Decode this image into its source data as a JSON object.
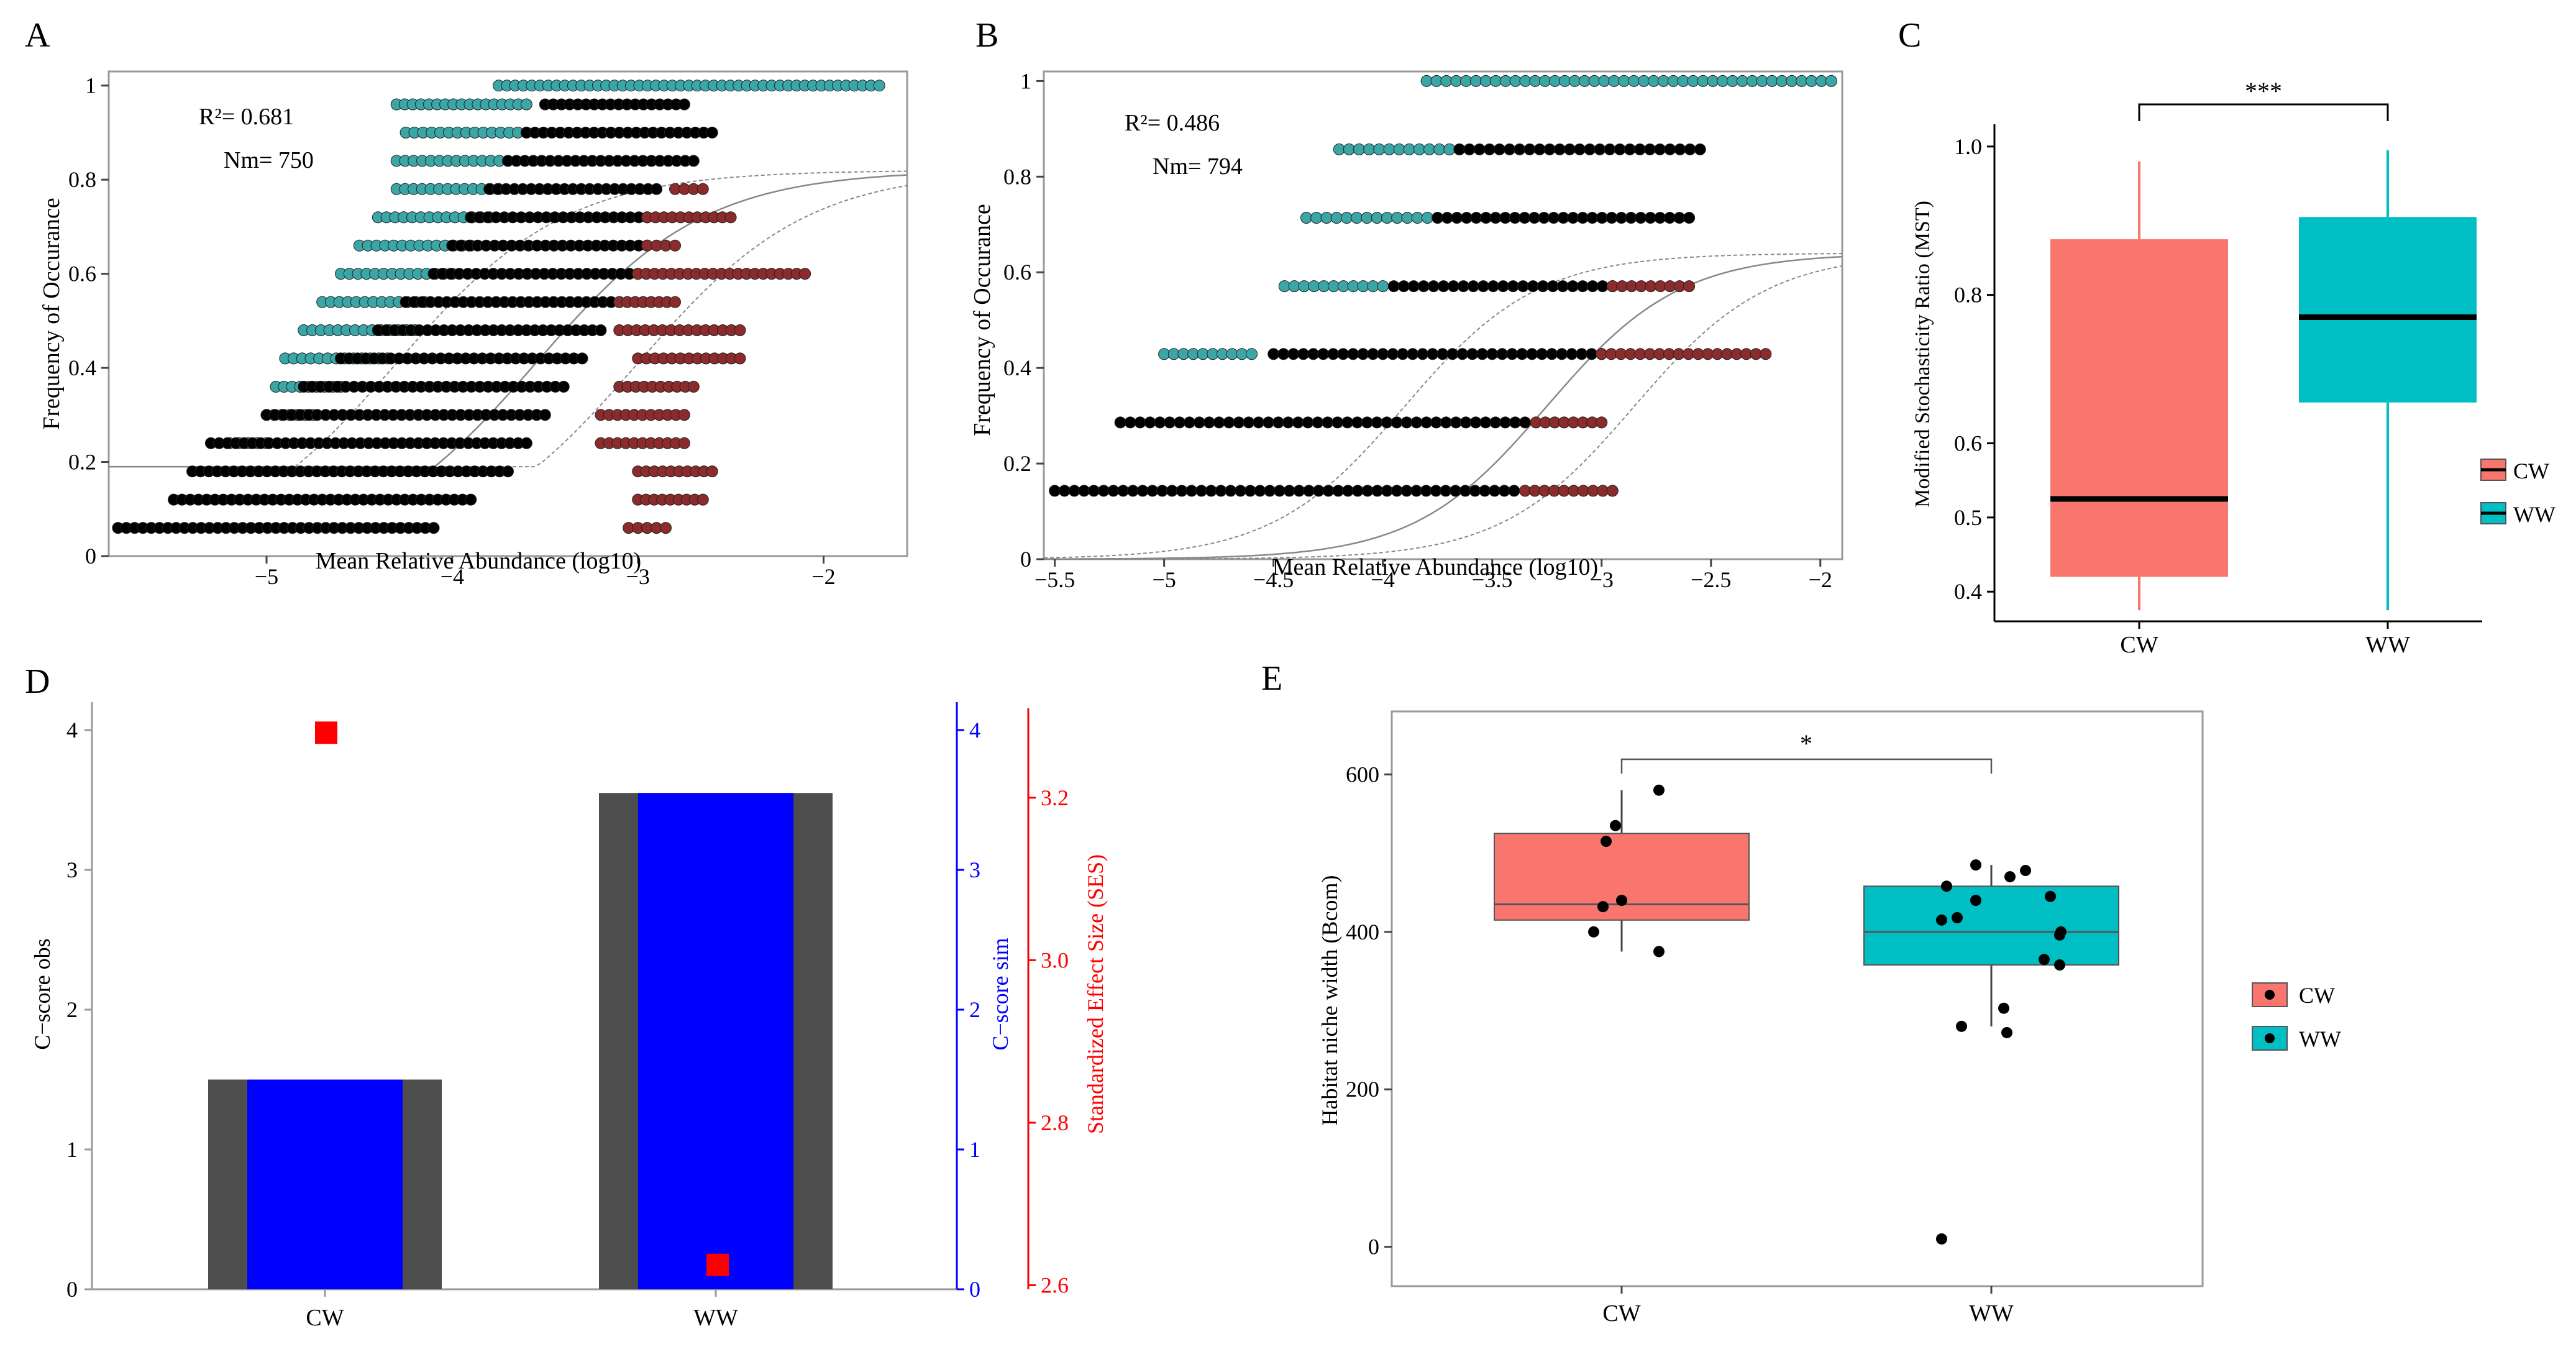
{
  "figure": {
    "panel_labels": [
      "A",
      "B",
      "C",
      "D",
      "E"
    ]
  },
  "colors": {
    "black_points": "#000000",
    "teal_points": "#3aa6a6",
    "red_points": "#8b2b2b",
    "cw_box": "#f8766d",
    "ww_box": "#00bfc4",
    "bar_outer": "#4d4d4d",
    "bar_inner": "#0000ff",
    "ses": "#ff0000",
    "sim_axis": "#0000ff",
    "ses_axis": "#ff0000"
  },
  "chart_data": [
    {
      "id": "A",
      "type": "scatter",
      "title": "",
      "xlabel": "Mean Relative Abundance (log10)",
      "ylabel": "Frequency of Occurance",
      "xlim": [
        -5.85,
        -1.55
      ],
      "ylim": [
        0,
        1.03
      ],
      "xticks": [
        -5,
        -4,
        -3,
        -2
      ],
      "yticks": [
        0,
        0.2,
        0.4,
        0.6,
        0.8,
        1
      ],
      "xtick_labels": [
        "−5",
        "−4",
        "−3",
        "−2"
      ],
      "ytick_labels": [
        "0",
        "0.2",
        "0.4",
        "0.6",
        "0.8",
        "1"
      ],
      "annotations": {
        "r2": "R²= 0.681",
        "nm": "Nm= 750"
      },
      "neutral_fit": {
        "m": 0.82,
        "x0": -3.55,
        "k": 2.2,
        "upper_offset": 0.55,
        "lower_offset": -0.75,
        "min": 0.19
      },
      "rows": [
        {
          "y": 0.06,
          "black": [
            -5.8,
            -4.1
          ],
          "red": [
            -3.05,
            -2.85
          ],
          "teal": null
        },
        {
          "y": 0.12,
          "black": [
            -5.5,
            -3.9
          ],
          "red": [
            -3.0,
            -2.65
          ],
          "teal": null
        },
        {
          "y": 0.18,
          "black": [
            -5.4,
            -3.7
          ],
          "red": [
            -3.0,
            -2.6
          ],
          "teal": null
        },
        {
          "y": 0.24,
          "black": [
            -5.3,
            -3.6
          ],
          "red": [
            -3.2,
            -2.75
          ],
          "teal": [
            -5.2,
            -5.0
          ]
        },
        {
          "y": 0.3,
          "black": [
            -5.0,
            -3.5
          ],
          "red": [
            -3.2,
            -2.75
          ],
          "teal": [
            -5.0,
            -4.75
          ]
        },
        {
          "y": 0.36,
          "black": [
            -4.8,
            -3.4
          ],
          "red": [
            -3.1,
            -2.7
          ],
          "teal": [
            -4.95,
            -4.6
          ]
        },
        {
          "y": 0.42,
          "black": [
            -4.6,
            -3.3
          ],
          "red": [
            -3.0,
            -2.45
          ],
          "teal": [
            -4.9,
            -4.35
          ]
        },
        {
          "y": 0.48,
          "black": [
            -4.4,
            -3.2
          ],
          "red": [
            -3.1,
            -2.45
          ],
          "teal": [
            -4.8,
            -4.2
          ]
        },
        {
          "y": 0.54,
          "black": [
            -4.25,
            -3.1
          ],
          "red": [
            -3.1,
            -2.8
          ],
          "teal": [
            -4.7,
            -4.15
          ]
        },
        {
          "y": 0.6,
          "black": [
            -4.1,
            -3.0
          ],
          "red": [
            -3.0,
            -2.1
          ],
          "teal": [
            -4.6,
            -4.0
          ]
        },
        {
          "y": 0.66,
          "black": [
            -4.0,
            -2.95
          ],
          "red": [
            -2.95,
            -2.8
          ],
          "teal": [
            -4.5,
            -3.9
          ]
        },
        {
          "y": 0.72,
          "black": [
            -3.9,
            -2.95
          ],
          "red": [
            -2.95,
            -2.5
          ],
          "teal": [
            -4.4,
            -3.8
          ]
        },
        {
          "y": 0.78,
          "black": [
            -3.8,
            -2.9
          ],
          "red": [
            -2.8,
            -2.65
          ],
          "teal": [
            -4.3,
            -3.75
          ]
        },
        {
          "y": 0.84,
          "black": [
            -3.7,
            -2.7
          ],
          "red": null,
          "teal": [
            -4.3,
            -3.7
          ]
        },
        {
          "y": 0.9,
          "black": [
            -3.6,
            -2.6
          ],
          "red": null,
          "teal": [
            -4.25,
            -3.6
          ]
        },
        {
          "y": 0.96,
          "black": [
            -3.5,
            -2.75
          ],
          "red": null,
          "teal": [
            -4.3,
            -3.6
          ]
        },
        {
          "y": 1.0,
          "black": null,
          "red": null,
          "teal": [
            -3.75,
            -1.7
          ]
        }
      ]
    },
    {
      "id": "B",
      "type": "scatter",
      "title": "",
      "xlabel": "Mean Relative Abundance (log10)",
      "ylabel": "Frequency of Occurance",
      "xlim": [
        -5.55,
        -1.9
      ],
      "ylim": [
        0,
        1.02
      ],
      "xticks": [
        -5.5,
        -5,
        -4.5,
        -4,
        -3.5,
        -3,
        -2.5,
        -2
      ],
      "yticks": [
        0,
        0.2,
        0.4,
        0.6,
        0.8,
        1
      ],
      "xtick_labels": [
        "−5.5",
        "−5",
        "−4.5",
        "−4",
        "−3.5",
        "−3",
        "−2.5",
        "−2"
      ],
      "ytick_labels": [
        "0",
        "0.2",
        "0.4",
        "0.6",
        "0.8",
        "1"
      ],
      "annotations": {
        "r2": "R²= 0.486",
        "nm": "Nm= 794"
      },
      "neutral_fit": {
        "m": 0.64,
        "x0": -3.25,
        "k": 3.3,
        "upper_offset": 0.4,
        "lower_offset": -0.65,
        "min": 0.0
      },
      "rows": [
        {
          "y": 0.143,
          "black": [
            -5.5,
            -3.4
          ],
          "red": [
            -3.35,
            -2.95
          ],
          "teal": null
        },
        {
          "y": 0.286,
          "black": [
            -5.2,
            -3.35
          ],
          "red": [
            -3.3,
            -3.0
          ],
          "teal": null
        },
        {
          "y": 0.429,
          "black": [
            -4.5,
            -3.0
          ],
          "red": [
            -3.0,
            -2.25
          ],
          "teal": [
            -5.0,
            -4.6
          ]
        },
        {
          "y": 0.571,
          "black": [
            -3.95,
            -2.95
          ],
          "red": [
            -2.95,
            -2.6
          ],
          "teal": [
            -4.45,
            -4.0
          ]
        },
        {
          "y": 0.714,
          "black": [
            -3.75,
            -2.6
          ],
          "red": null,
          "teal": [
            -4.35,
            -3.75
          ]
        },
        {
          "y": 0.857,
          "black": [
            -3.65,
            -2.55
          ],
          "red": null,
          "teal": [
            -4.2,
            -3.65
          ]
        },
        {
          "y": 1.0,
          "black": null,
          "red": null,
          "teal": [
            -3.8,
            -1.95
          ]
        }
      ]
    },
    {
      "id": "C",
      "type": "box",
      "title": "",
      "xlabel": "",
      "ylabel": "Modified Stochasticity Ratio (MST)",
      "categories": [
        "CW",
        "WW"
      ],
      "ylim": [
        0.36,
        1.03
      ],
      "yticks": [
        0.4,
        0.5,
        0.6,
        0.8,
        1.0
      ],
      "ytick_labels": [
        "0.4",
        "0.5",
        "0.6",
        "0.8",
        "1.0"
      ],
      "series": [
        {
          "name": "CW",
          "min": 0.375,
          "q1": 0.42,
          "median": 0.525,
          "q3": 0.875,
          "max": 0.98
        },
        {
          "name": "WW",
          "min": 0.375,
          "q1": 0.655,
          "median": 0.77,
          "q3": 0.905,
          "max": 0.995
        }
      ],
      "significance": "***",
      "legend": [
        "CW",
        "WW"
      ]
    },
    {
      "id": "D",
      "type": "bar",
      "title": "",
      "categories": [
        "CW",
        "WW"
      ],
      "ylabel": "C−score obs",
      "ylabel_sim": "C−score sim",
      "ylabel_ses": "Standardized Effect Size (SES)",
      "obs": [
        1.5,
        3.55
      ],
      "sim": [
        1.5,
        3.55
      ],
      "ses": [
        3.28,
        2.625
      ],
      "ylim": [
        0,
        4.2
      ],
      "yticks": [
        0,
        1,
        2,
        3,
        4
      ],
      "ytick_labels": [
        "0",
        "1",
        "2",
        "3",
        "4"
      ],
      "ses_lim": [
        2.595,
        3.31
      ],
      "ses_ticks": [
        2.6,
        2.8,
        3.0,
        3.2
      ],
      "ses_tick_labels": [
        "2.6",
        "2.8",
        "3.0",
        "3.2"
      ]
    },
    {
      "id": "E",
      "type": "box",
      "title": "",
      "xlabel": "",
      "ylabel": "Habitat niche width (Bcom)",
      "categories": [
        "CW",
        "WW"
      ],
      "ylim": [
        -50,
        680
      ],
      "yticks": [
        0,
        200,
        400,
        600
      ],
      "ytick_labels": [
        "0",
        "200",
        "400",
        "600"
      ],
      "series": [
        {
          "name": "CW",
          "min": 375,
          "q1": 415,
          "median": 435,
          "q3": 525,
          "max": 580,
          "points": [
            580,
            535,
            515,
            440,
            432,
            400,
            375
          ]
        },
        {
          "name": "WW",
          "min": 280,
          "q1": 358,
          "median": 400,
          "q3": 458,
          "max": 485,
          "points": [
            485,
            478,
            470,
            458,
            445,
            440,
            418,
            415,
            400,
            396,
            365,
            358,
            303,
            280,
            272,
            10
          ]
        }
      ],
      "significance": "*",
      "legend": [
        "CW",
        "WW"
      ]
    }
  ]
}
